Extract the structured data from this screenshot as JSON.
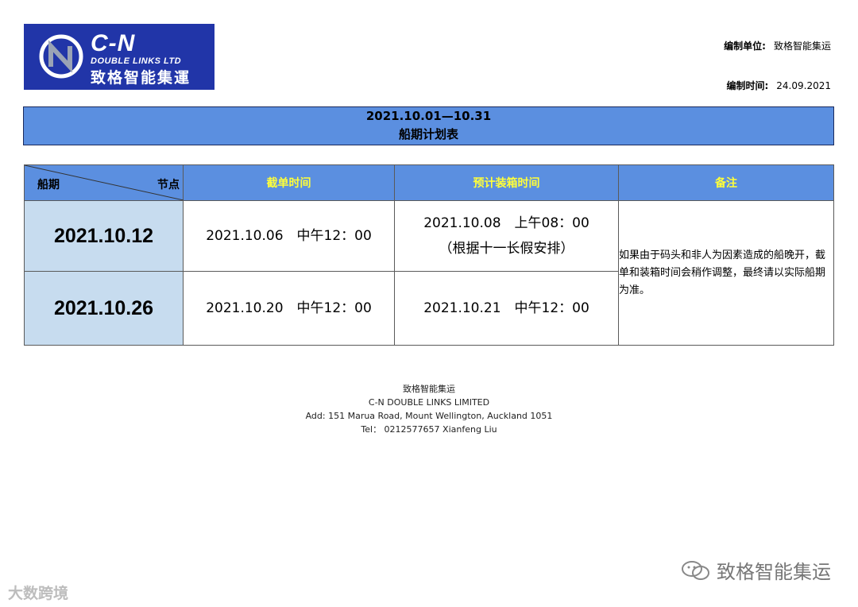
{
  "logo": {
    "brand": "C-N",
    "subtitle": "DOUBLE LINKS LTD",
    "chinese": "致格智能集運"
  },
  "meta": {
    "unit_label": "编制单位:",
    "unit_value": "致格智能集运",
    "time_label": "编制时间:",
    "time_value": "24.09.2021"
  },
  "banner": {
    "period": "2021.10.01—10.31",
    "title": "船期计划表"
  },
  "table": {
    "header": {
      "diag_left": "船期",
      "diag_right": "节点",
      "cutoff": "截单时间",
      "loading": "预计装箱时间",
      "remark": "备注"
    },
    "rows": [
      {
        "date": "2021.10.12",
        "cutoff": "2021.10.06　中午12：00",
        "loading": "2021.10.08　上午08：00",
        "loading_note": "（根据十一长假安排）"
      },
      {
        "date": "2021.10.26",
        "cutoff": "2021.10.20　中午12：00",
        "loading": "2021.10.21　中午12：00"
      }
    ],
    "remark": "如果由于码头和非人为因素造成的船晚开，截单和装箱时间会稍作调整，最终请以实际船期为准。"
  },
  "footer": {
    "line1": "致格智能集运",
    "line2": "C-N DOUBLE LINKS LIMITED",
    "line3": "Add: 151 Marua Road, Mount Wellington, Auckland 1051",
    "line4": "Tel：  0212577657  Xianfeng Liu"
  },
  "watermarks": {
    "left": "大数跨境",
    "right": "致格智能集运"
  },
  "colors": {
    "logo_bg": "#2135a8",
    "header_blue": "#5b8fe0",
    "header_text_yellow": "#ffff3a",
    "date_cell_bg": "#c7dcef"
  }
}
